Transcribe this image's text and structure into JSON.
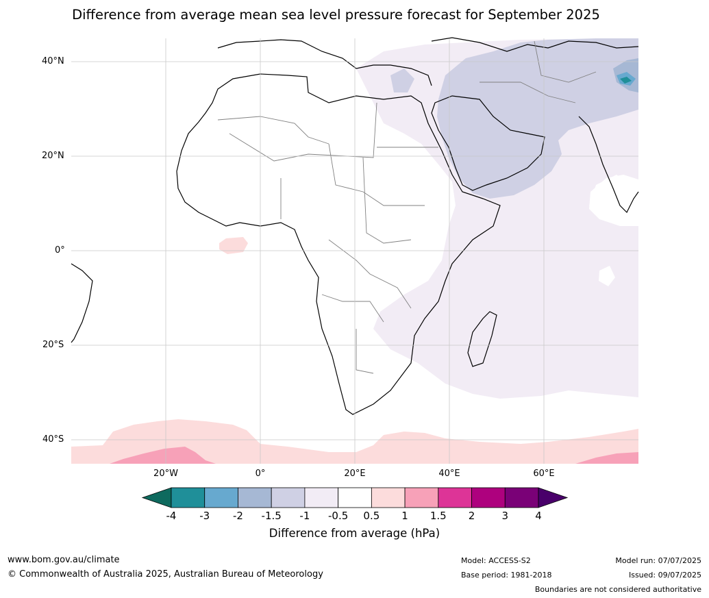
{
  "title": "Difference from average mean sea level pressure forecast for September 2025",
  "map": {
    "lat_labels": [
      "40°N",
      "20°N",
      "0°",
      "20°S",
      "40°S"
    ],
    "lon_labels": [
      "20°W",
      "0°",
      "20°E",
      "40°E",
      "60°E"
    ],
    "extent": {
      "lon_min": -40,
      "lon_max": 80,
      "lat_min": -45,
      "lat_max": 45
    }
  },
  "colorbar": {
    "label": "Difference from average (hPa)",
    "ticks": [
      "-4",
      "-3",
      "-2",
      "-1.5",
      "-1",
      "-0.5",
      "0.5",
      "1",
      "1.5",
      "2",
      "3",
      "4"
    ],
    "colors": [
      "#0e6a5e",
      "#1f8f99",
      "#67a9cf",
      "#a6b8d4",
      "#cfd0e4",
      "#f2ecf5",
      "#ffffff",
      "#fcdcdc",
      "#f7a1b8",
      "#dd3497",
      "#ae017e",
      "#7a0177",
      "#49006a"
    ]
  },
  "footer": {
    "website": "www.bom.gov.au/climate",
    "copyright": "© Commonwealth of Australia 2025, Australian Bureau of Meteorology",
    "model": "Model: ACCESS-S2",
    "base_period": "Base period: 1981-2018",
    "model_run": "Model run: 07/07/2025",
    "issued": "Issued: 09/07/2025",
    "disclaimer": "Boundaries are not considered authoritative"
  }
}
